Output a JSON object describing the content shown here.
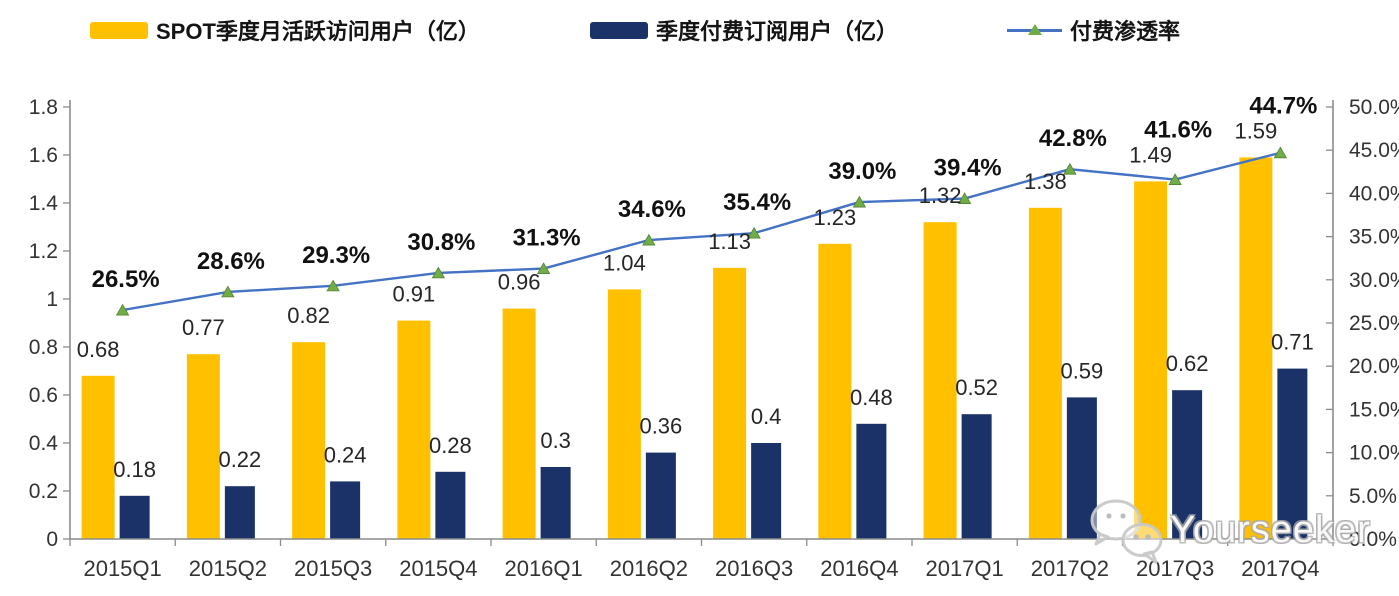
{
  "legend": {
    "items": [
      {
        "label": "SPOT季度月活跃访问用户（亿）"
      },
      {
        "label": "季度付费订阅用户（亿）"
      },
      {
        "label": "付费渗透率"
      }
    ]
  },
  "watermark": {
    "text": "Yourseeker",
    "icon": "wechat-icon"
  },
  "chart_data": {
    "type": "bar",
    "subtype": "combo-bar-line-dual-axis",
    "title": "",
    "categories": [
      "2015Q1",
      "2015Q2",
      "2015Q3",
      "2015Q4",
      "2016Q1",
      "2016Q2",
      "2016Q3",
      "2016Q4",
      "2017Q1",
      "2017Q2",
      "2017Q3",
      "2017Q4"
    ],
    "series": [
      {
        "name": "SPOT季度月活跃访问用户（亿）",
        "type": "bar",
        "axis": "left",
        "color": "#FFC000",
        "values": [
          0.68,
          0.77,
          0.82,
          0.91,
          0.96,
          1.04,
          1.13,
          1.23,
          1.32,
          1.38,
          1.49,
          1.59
        ],
        "labels": [
          "0.68",
          "0.77",
          "0.82",
          "0.91",
          "0.96",
          "1.04",
          "1.13",
          "1.23",
          "1.32",
          "1.38",
          "1.49",
          "1.59"
        ]
      },
      {
        "name": "季度付费订阅用户（亿）",
        "type": "bar",
        "axis": "left",
        "color": "#1A3268",
        "values": [
          0.18,
          0.22,
          0.24,
          0.28,
          0.3,
          0.36,
          0.4,
          0.48,
          0.52,
          0.59,
          0.62,
          0.71
        ],
        "labels": [
          "0.18",
          "0.22",
          "0.24",
          "0.28",
          "0.3",
          "0.36",
          "0.4",
          "0.48",
          "0.52",
          "0.59",
          "0.62",
          "0.71"
        ]
      },
      {
        "name": "付费渗透率",
        "type": "line",
        "axis": "right",
        "color": "#4472C4",
        "marker": "triangle",
        "marker_color": "#70AD47",
        "values": [
          26.5,
          28.6,
          29.3,
          30.8,
          31.3,
          34.6,
          35.4,
          39.0,
          39.4,
          42.8,
          41.6,
          44.7
        ],
        "labels": [
          "26.5%",
          "28.6%",
          "29.3%",
          "30.8%",
          "31.3%",
          "34.6%",
          "35.4%",
          "39.0%",
          "39.4%",
          "42.8%",
          "41.6%",
          "44.7%"
        ]
      }
    ],
    "left_axis": {
      "min": 0,
      "max": 1.8,
      "step": 0.2,
      "ticks": [
        "0",
        "0.2",
        "0.4",
        "0.6",
        "0.8",
        "1",
        "1.2",
        "1.4",
        "1.6",
        "1.8"
      ]
    },
    "right_axis": {
      "min": 0,
      "max": 50,
      "step": 5,
      "ticks": [
        "0.0%",
        "5.0%",
        "10.0%",
        "15.0%",
        "20.0%",
        "25.0%",
        "30.0%",
        "35.0%",
        "40.0%",
        "45.0%",
        "50.0%"
      ]
    },
    "grid": false,
    "legend_position": "top",
    "colors": {
      "axis_line": "#8C8C8C",
      "tick_label": "#333333",
      "data_label": "#262626",
      "pct_label": "#111111"
    }
  }
}
